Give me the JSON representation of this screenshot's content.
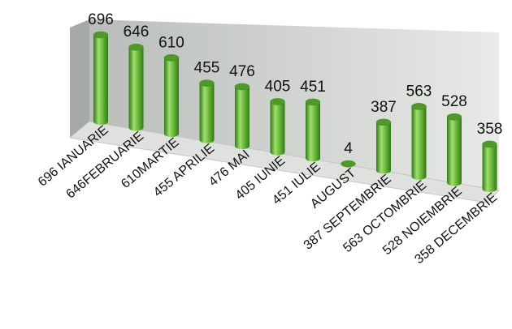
{
  "chart_data": {
    "type": "bar",
    "style": "3d-cylinder",
    "categories": [
      "696 IANUARIE",
      "646FEBRUARIE",
      "610MARTIE",
      "455 APRILIE",
      "476  MAI",
      "405 IUNIE",
      "451 IULIE",
      "AUGUST",
      "387 SEPTEMBRIE",
      "563 OCTOMBRIE",
      "528 NOIEMBRIE",
      "358 DECEMBRIE"
    ],
    "values": [
      696,
      646,
      610,
      455,
      476,
      405,
      451,
      4,
      387,
      563,
      528,
      358
    ],
    "data_labels": [
      "696",
      "646",
      "610",
      "455",
      "476",
      "405",
      "451",
      "4",
      "387",
      "563",
      "528",
      "358"
    ],
    "title": "",
    "xlabel": "",
    "ylabel": "",
    "ylim": [
      0,
      700
    ],
    "grid": false,
    "legend": "none",
    "colors": {
      "bar": "#5fae32",
      "bar_light": "#9fe06a",
      "bar_dark": "#2f7a16",
      "bar_top": "#4f9a26",
      "wall": "#c9ccc9",
      "floor": "#e4e6e3"
    }
  }
}
